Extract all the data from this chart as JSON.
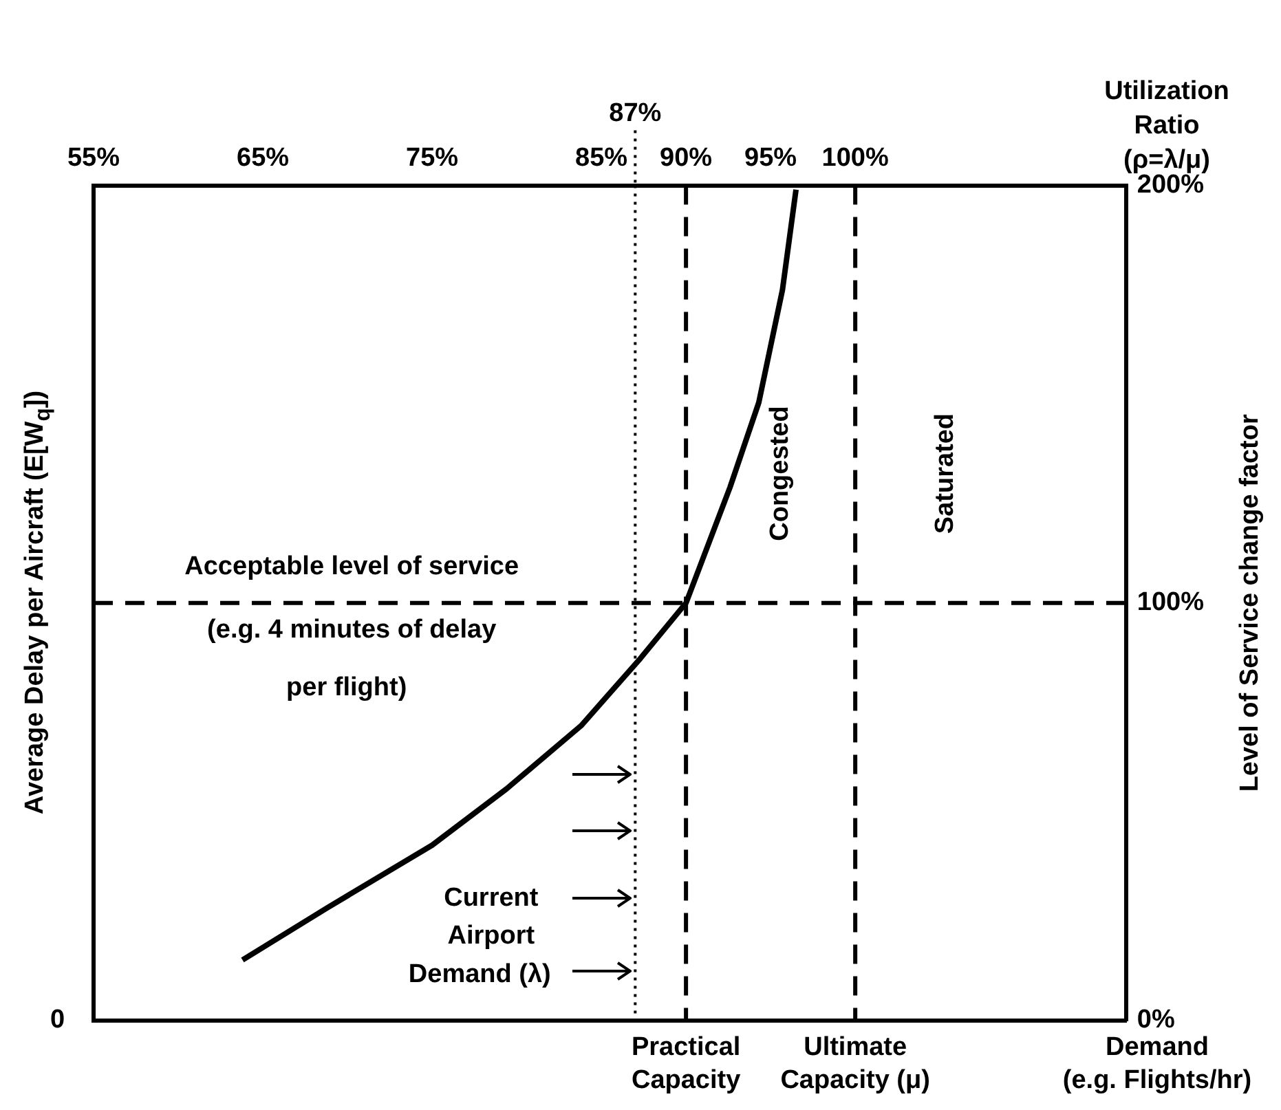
{
  "chart_data": {
    "type": "line",
    "xlabel": "Utilization Ratio (ρ=λ/μ)",
    "ylabel": "Level of Service change factor",
    "xlim": [
      55,
      116
    ],
    "xticks": [
      {
        "value": 55,
        "label": "55%"
      },
      {
        "value": 65,
        "label": "65%"
      },
      {
        "value": 75,
        "label": "75%"
      },
      {
        "value": 85,
        "label": "85%"
      },
      {
        "value": 90,
        "label": "90%"
      },
      {
        "value": 95,
        "label": "95%"
      },
      {
        "value": 100,
        "label": "100%"
      }
    ],
    "ylim": [
      0,
      200
    ],
    "yticks": [
      {
        "value": 0,
        "label": "0%"
      },
      {
        "value": 100,
        "label": "100%"
      },
      {
        "value": 200,
        "label": "200%"
      }
    ],
    "series": [
      {
        "color": "#000000",
        "x": [
          63.8,
          68.8,
          75,
          79.4,
          83.8,
          87.3,
          90,
          92.6,
          94.3,
          95.7,
          96.5
        ],
        "values": [
          14.5,
          27,
          42,
          55.5,
          70.6,
          86.7,
          100,
          127.7,
          148,
          175,
          199
        ]
      }
    ],
    "ref_lines": [
      {
        "axis": "x",
        "value": 87,
        "label": "87%",
        "line_style": "dotted",
        "color": "#000000"
      },
      {
        "axis": "x",
        "value": 90,
        "label": "Practical Capacity",
        "line_style": "dashed",
        "color": "#000000"
      },
      {
        "axis": "x",
        "value": 100,
        "label": "Ultimate Capacity (μ)",
        "line_style": "dashed",
        "color": "#000000"
      },
      {
        "axis": "y",
        "value": 100,
        "line_style": "dashed",
        "color": "#000000"
      }
    ],
    "annotations": [
      "Acceptable level of service",
      "(e.g. 4 minutes of delay",
      "per flight)",
      "Congested",
      "Saturated",
      "Current",
      "Airport",
      "Demand (λ)",
      "0",
      "Average Delay per Aircraft (E[W$_{q}$])",
      "Demand (e.g. Flights/hr)"
    ]
  }
}
